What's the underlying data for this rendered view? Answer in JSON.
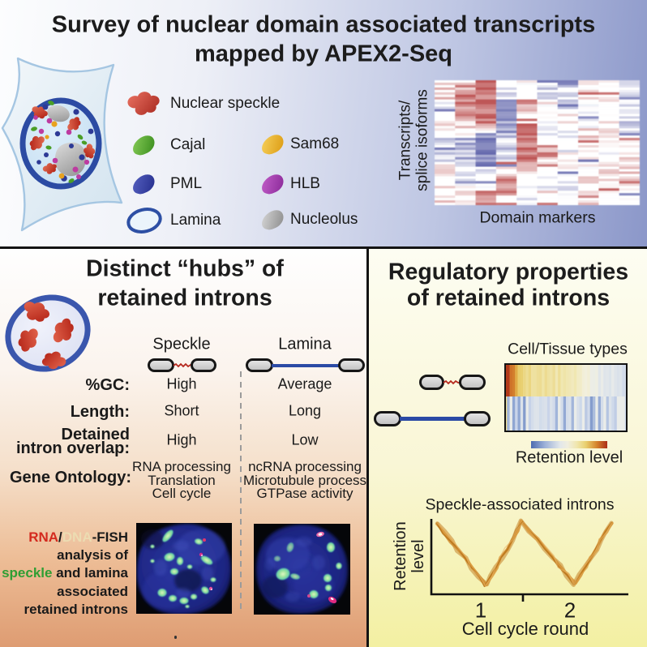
{
  "top_panel": {
    "title_line1": "Survey of nuclear domain associated transcripts",
    "title_line2": "mapped by APEX2-Seq",
    "legend_col1": [
      {
        "label": "Nuclear speckle",
        "shape": "speckle",
        "color": "#b03228",
        "light": "#e2695a"
      },
      {
        "label": "Cajal",
        "shape": "bean",
        "color": "#3c8f1f",
        "light": "#86cb57"
      },
      {
        "label": "PML",
        "shape": "bean",
        "color": "#27308f",
        "light": "#5560c0"
      },
      {
        "label": "Lamina",
        "shape": "ring",
        "color": "#2d4fa4",
        "light": "#ebf4fb"
      }
    ],
    "legend_col2": [
      {
        "label": "Sam68",
        "shape": "bean",
        "color": "#dd9d15",
        "light": "#f6d05c"
      },
      {
        "label": "HLB",
        "shape": "bean",
        "color": "#8c2b9a",
        "light": "#c25ec9"
      },
      {
        "label": "Nucleolus",
        "shape": "bean",
        "color": "#8f8f8f",
        "light": "#d6d6d6"
      }
    ],
    "heatmap_ylabel_line1": "Transcripts/",
    "heatmap_ylabel_line2": "splice isoforms",
    "heatmap_xlabel": "Domain markers"
  },
  "left_panel": {
    "title_line1": "Distinct “hubs” of",
    "title_line2": "retained introns",
    "col_speckle": "Speckle",
    "col_lamina": "Lamina",
    "rows": [
      {
        "label": "%GC:",
        "speckle": "High",
        "lamina": "Average"
      },
      {
        "label": "Length:",
        "speckle": "Short",
        "lamina": "Long"
      },
      {
        "label_line1": "Detained",
        "label_line2": "intron overlap:",
        "speckle": "High",
        "lamina": "Low"
      },
      {
        "label": "Gene Ontology:",
        "speckle": [
          "RNA processing",
          "Translation",
          "Cell cycle"
        ],
        "lamina": [
          "ncRNA processing",
          "Microtubule process",
          "GTPase activity"
        ]
      }
    ],
    "fish_caption_lines": [
      [
        {
          "text": "RNA",
          "color": "#d42a1e"
        },
        {
          "text": "/",
          "color": "#1a1a1a"
        },
        {
          "text": "DNA",
          "color": "#ecdcb2"
        },
        {
          "text": "-FISH",
          "color": "#1a1a1a"
        }
      ],
      [
        {
          "text": "analysis of",
          "color": "#1a1a1a"
        }
      ],
      [
        {
          "text": "speckle",
          "color": "#2f9e33"
        },
        {
          "text": " and lamina",
          "color": "#1a1a1a"
        }
      ],
      [
        {
          "text": "associated",
          "color": "#1a1a1a"
        }
      ],
      [
        {
          "text": "retained introns",
          "color": "#1a1a1a"
        }
      ]
    ]
  },
  "right_panel": {
    "title_line1": "Regulatory properties",
    "title_line2": "of retained introns",
    "heatmap_title": "Cell/Tissue types",
    "colorbar_label": "Retention level",
    "chart_title": "Speckle-associated introns",
    "chart_ylabel_line1": "Retention",
    "chart_ylabel_line2": "level",
    "chart_xlabel": "Cell cycle round",
    "chart_xticks": [
      "1",
      "2"
    ]
  },
  "chart_data": [
    {
      "name": "domain-marker-heatmap",
      "type": "heatmap",
      "xlabel": "Domain markers",
      "ylabel": "Transcripts/ splice isoforms",
      "columns": 10,
      "rows": 52,
      "palette": {
        "positive": "#b23737",
        "negative": "#4a4f9f",
        "mid": "#ffffff"
      },
      "seed": 13,
      "noise": 0.55,
      "column_profiles": [
        [
          [
            0,
            8,
            0.3
          ],
          [
            8,
            14,
            -0.15
          ],
          [
            14,
            24,
            0.2
          ],
          [
            24,
            34,
            -0.35
          ],
          [
            34,
            42,
            0.1
          ],
          [
            42,
            52,
            0.25
          ]
        ],
        [
          [
            0,
            4,
            0.2
          ],
          [
            4,
            16,
            0.8
          ],
          [
            16,
            24,
            0.25
          ],
          [
            24,
            36,
            -0.55
          ],
          [
            36,
            44,
            -0.2
          ],
          [
            44,
            52,
            0.15
          ]
        ],
        [
          [
            0,
            6,
            0.9
          ],
          [
            6,
            18,
            0.95
          ],
          [
            18,
            22,
            0.3
          ],
          [
            22,
            36,
            -0.8
          ],
          [
            36,
            46,
            -0.25
          ],
          [
            46,
            52,
            0.85
          ]
        ],
        [
          [
            0,
            8,
            -0.25
          ],
          [
            8,
            22,
            -0.75
          ],
          [
            22,
            34,
            -0.45
          ],
          [
            34,
            40,
            0.1
          ],
          [
            40,
            48,
            0.7
          ],
          [
            48,
            52,
            0.1
          ]
        ],
        [
          [
            0,
            8,
            0.05
          ],
          [
            8,
            18,
            0.25
          ],
          [
            18,
            34,
            0.9
          ],
          [
            34,
            42,
            0.3
          ],
          [
            42,
            52,
            -0.15
          ]
        ],
        [
          [
            0,
            8,
            -0.3
          ],
          [
            8,
            16,
            0.1
          ],
          [
            16,
            26,
            -0.2
          ],
          [
            26,
            36,
            0.3
          ],
          [
            36,
            46,
            -0.1
          ],
          [
            46,
            52,
            0.15
          ]
        ],
        [
          [
            0,
            12,
            -0.26
          ],
          [
            12,
            20,
            0.08
          ],
          [
            20,
            30,
            -0.18
          ],
          [
            30,
            38,
            0.05
          ],
          [
            38,
            52,
            -0.22
          ]
        ],
        [
          [
            0,
            10,
            0.12
          ],
          [
            10,
            20,
            -0.08
          ],
          [
            20,
            28,
            0.28
          ],
          [
            28,
            40,
            0.05
          ],
          [
            40,
            52,
            0.25
          ]
        ],
        [
          [
            0,
            12,
            0.08
          ],
          [
            12,
            24,
            0.24
          ],
          [
            24,
            34,
            -0.05
          ],
          [
            34,
            44,
            0.18
          ],
          [
            44,
            52,
            0.05
          ]
        ],
        [
          [
            0,
            12,
            -0.2
          ],
          [
            12,
            24,
            -0.32
          ],
          [
            24,
            32,
            0.05
          ],
          [
            32,
            44,
            0.28
          ],
          [
            44,
            52,
            0.18
          ]
        ]
      ]
    },
    {
      "name": "cell-tissue-heatmap",
      "type": "heatmap",
      "title": "Cell/Tissue types",
      "row_names": [
        "Speckle-associated intron",
        "Lamina-associated intron"
      ],
      "columns": 46,
      "colorbar_label": "Retention level",
      "seed": 5,
      "description": "Top row grades from red through orange and yellow to pale blue (left to right); bottom row mostly blue shades with a yellow first column."
    },
    {
      "name": "retention-cycle-chart",
      "type": "line",
      "title": "Speckle-associated introns",
      "xlabel": "Cell cycle round",
      "ylabel": "Retention level",
      "x_ticks": [
        "1",
        "2"
      ],
      "line_color": "#cc8726",
      "style": "hand-drawn zigzag",
      "series": [
        {
          "name": "Retention level",
          "points": [
            [
              0.05,
              0.93
            ],
            [
              0.62,
              0.07
            ],
            [
              1.08,
              0.97
            ],
            [
              1.73,
              0.09
            ],
            [
              2.18,
              0.92
            ]
          ]
        }
      ]
    }
  ]
}
